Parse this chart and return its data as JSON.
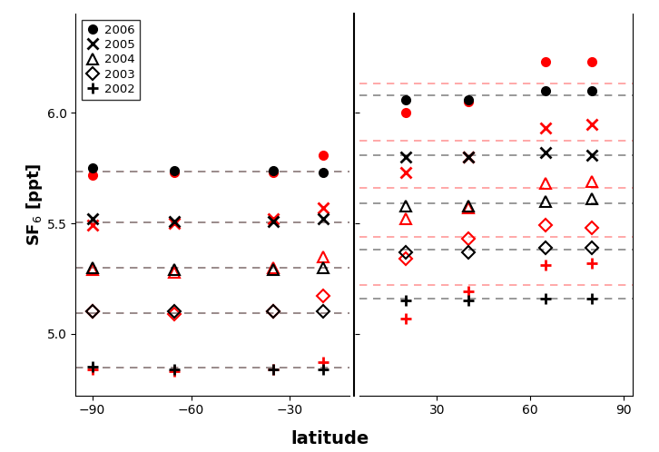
{
  "ylabel": "SF$_6$ [ppt]",
  "xlabel": "latitude",
  "ylim": [
    4.72,
    6.45
  ],
  "yticks": [
    5.0,
    5.5,
    6.0
  ],
  "years": [
    "2006",
    "2005",
    "2004",
    "2003",
    "2002"
  ],
  "south_lats": [
    -90,
    -65,
    -35,
    -20
  ],
  "north_lats": [
    20,
    40,
    65,
    80
  ],
  "obs_south": {
    "2006": [
      5.72,
      5.73,
      5.73,
      5.81
    ],
    "2005": [
      5.49,
      5.5,
      5.52,
      5.57
    ],
    "2004": [
      5.29,
      5.28,
      5.3,
      5.35
    ],
    "2003": [
      5.1,
      5.09,
      5.1,
      5.17
    ],
    "2002": [
      4.84,
      4.83,
      4.84,
      4.87
    ]
  },
  "mod_south": {
    "2006": [
      5.75,
      5.74,
      5.74,
      5.73
    ],
    "2005": [
      5.52,
      5.51,
      5.51,
      5.52
    ],
    "2004": [
      5.3,
      5.29,
      5.29,
      5.3
    ],
    "2003": [
      5.1,
      5.1,
      5.1,
      5.1
    ],
    "2002": [
      4.85,
      4.84,
      4.84,
      4.84
    ]
  },
  "obs_north": {
    "2006": [
      6.0,
      6.05,
      6.23,
      6.23
    ],
    "2005": [
      5.73,
      5.8,
      5.93,
      5.95
    ],
    "2004": [
      5.52,
      5.57,
      5.68,
      5.69
    ],
    "2003": [
      5.34,
      5.43,
      5.49,
      5.48
    ],
    "2002": [
      5.07,
      5.19,
      5.31,
      5.32
    ]
  },
  "mod_north": {
    "2006": [
      6.06,
      6.06,
      6.1,
      6.1
    ],
    "2005": [
      5.8,
      5.8,
      5.82,
      5.81
    ],
    "2004": [
      5.58,
      5.58,
      5.6,
      5.61
    ],
    "2003": [
      5.37,
      5.37,
      5.39,
      5.39
    ],
    "2002": [
      5.15,
      5.15,
      5.16,
      5.16
    ]
  },
  "hline_red_south": {
    "2006": 5.735,
    "2005": 5.505,
    "2004": 5.3,
    "2003": 5.095,
    "2002": 4.845
  },
  "hline_black_south": {
    "2006": 5.735,
    "2005": 5.505,
    "2004": 5.3,
    "2003": 5.095,
    "2002": 4.845
  },
  "hline_red_north": {
    "2006": 6.135,
    "2005": 5.875,
    "2004": 5.66,
    "2003": 5.44,
    "2002": 5.22
  },
  "hline_black_north": {
    "2006": 6.08,
    "2005": 5.81,
    "2004": 5.59,
    "2003": 5.38,
    "2002": 5.16
  },
  "red": "#FF0000",
  "black": "#000000",
  "dred": "#FF9999",
  "dgray": "#888888",
  "left_xlim": [
    -95,
    -12
  ],
  "right_xlim": [
    5,
    93
  ],
  "left_xticks": [
    -90,
    -60,
    -30
  ],
  "right_xticks": [
    30,
    60,
    90
  ]
}
